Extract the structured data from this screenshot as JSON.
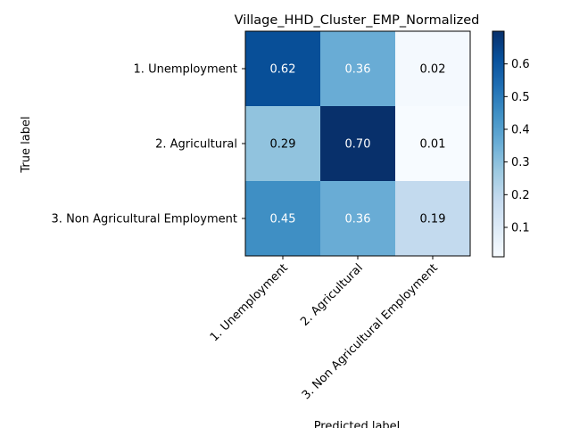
{
  "chart_data": {
    "type": "heatmap",
    "title": "Village_HHD_Cluster_EMP_Normalized",
    "xlabel": "Predicted label",
    "ylabel": "True label",
    "rows": [
      "1. Unemployment",
      "2. Agricultural",
      "3. Non Agricultural Employment"
    ],
    "columns": [
      "1. Unemployment",
      "2. Agricultural",
      "3. Non Agricultural Employment"
    ],
    "values": [
      [
        0.62,
        0.36,
        0.02
      ],
      [
        0.29,
        0.7,
        0.01
      ],
      [
        0.45,
        0.36,
        0.19
      ]
    ],
    "value_labels": [
      [
        "0.62",
        "0.36",
        "0.02"
      ],
      [
        "0.29",
        "0.70",
        "0.01"
      ],
      [
        "0.45",
        "0.36",
        "0.19"
      ]
    ],
    "colormap": "Blues",
    "color_range": [
      0.01,
      0.7
    ],
    "colorbar_ticks": [
      0.1,
      0.2,
      0.3,
      0.4,
      0.5,
      0.6
    ],
    "colorbar_tick_labels": [
      "0.1",
      "0.2",
      "0.3",
      "0.4",
      "0.5",
      "0.6"
    ],
    "text_colors": {
      "light": "#ffffff",
      "dark": "#000000"
    },
    "grid": false,
    "legend": "colorbar right"
  }
}
